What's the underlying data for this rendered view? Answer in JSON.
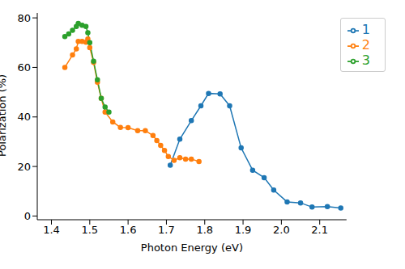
{
  "chart_data": {
    "type": "line",
    "x_label": "Photon Energy (eV)",
    "y_label": "Polarization (%)",
    "xlim": [
      1.363,
      2.17
    ],
    "ylim": [
      -1.5,
      82
    ],
    "xticks": [
      1.4,
      1.5,
      1.6,
      1.7,
      1.8,
      1.9,
      {
        "value": 2,
        "label": "2.0"
      },
      2.1
    ],
    "yticks": [
      0,
      20,
      40,
      60,
      80
    ],
    "grid": false,
    "legend": "upper right",
    "marker": "circle",
    "series": [
      {
        "name": "1",
        "color": "#1f77b4",
        "x": [
          1.71,
          1.735,
          1.765,
          1.79,
          1.81,
          1.84,
          1.865,
          1.895,
          1.925,
          1.955,
          1.98,
          2.015,
          2.05,
          2.08,
          2.12,
          2.155
        ],
        "values": [
          20.5,
          31,
          38.5,
          44.5,
          49.5,
          49.3,
          44.5,
          27.5,
          18.5,
          15.5,
          10.5,
          5.7,
          5.3,
          3.6,
          3.8,
          3.2
        ]
      },
      {
        "name": "2",
        "color": "#ff7f0e",
        "x": [
          1.435,
          1.455,
          1.465,
          1.47,
          1.48,
          1.49,
          1.495,
          1.5,
          1.51,
          1.52,
          1.53,
          1.54,
          1.56,
          1.58,
          1.6,
          1.625,
          1.645,
          1.665,
          1.675,
          1.685,
          1.695,
          1.705,
          1.72,
          1.735,
          1.75,
          1.765,
          1.785
        ],
        "values": [
          60,
          65,
          67.5,
          70.5,
          70.5,
          70.2,
          71.5,
          68,
          62,
          54,
          47.5,
          42,
          38,
          35.8,
          35.7,
          34.5,
          34.5,
          32.5,
          30.5,
          28.5,
          26.5,
          24,
          22.5,
          23.5,
          23,
          23,
          22
        ]
      },
      {
        "name": "3",
        "color": "#2ca02c",
        "x": [
          1.435,
          1.445,
          1.455,
          1.465,
          1.47,
          1.48,
          1.49,
          1.495,
          1.5,
          1.51,
          1.52,
          1.53,
          1.54,
          1.55
        ],
        "values": [
          72.5,
          73.5,
          75,
          76.5,
          77.8,
          77,
          76.5,
          74,
          70,
          62.5,
          55,
          47.5,
          44,
          42
        ]
      }
    ]
  }
}
